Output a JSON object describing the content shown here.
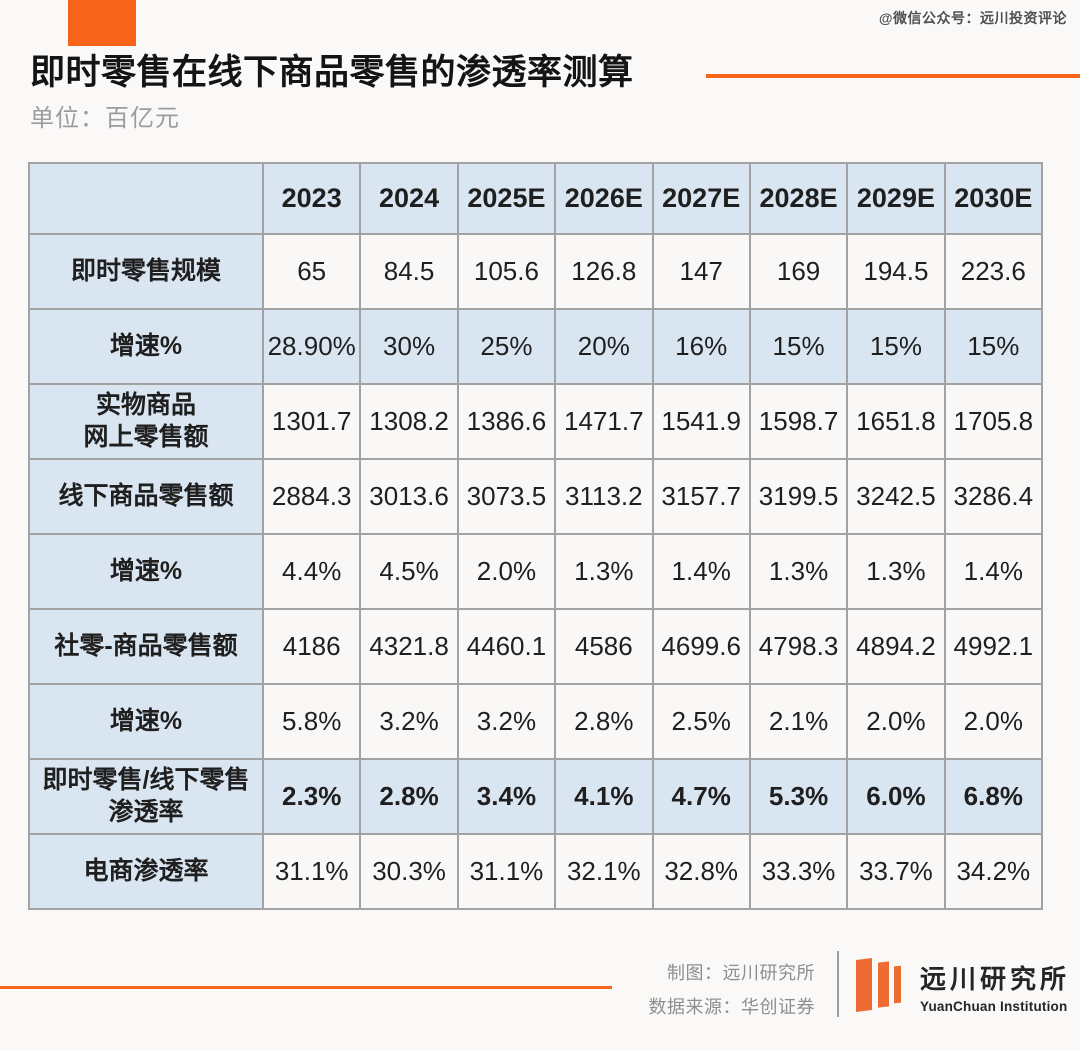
{
  "watermark": "@微信公众号：远川投资评论",
  "header": {
    "title": "即时零售在线下商品零售的渗透率测算",
    "unit": "单位：百亿元"
  },
  "chart_data": {
    "type": "table",
    "title": "即时零售在线下商品零售的渗透率测算",
    "unit": "单位：百亿元",
    "columns": [
      "",
      "2023",
      "2024",
      "2025E",
      "2026E",
      "2027E",
      "2028E",
      "2029E",
      "2030E"
    ],
    "rows": [
      {
        "label": "即时零售规模",
        "highlight": false,
        "bold": false,
        "values": [
          "65",
          "84.5",
          "105.6",
          "126.8",
          "147",
          "169",
          "194.5",
          "223.6"
        ]
      },
      {
        "label": "增速%",
        "highlight": true,
        "bold": false,
        "values": [
          "28.90%",
          "30%",
          "25%",
          "20%",
          "16%",
          "15%",
          "15%",
          "15%"
        ]
      },
      {
        "label": "实物商品\n网上零售额",
        "highlight": false,
        "bold": false,
        "values": [
          "1301.7",
          "1308.2",
          "1386.6",
          "1471.7",
          "1541.9",
          "1598.7",
          "1651.8",
          "1705.8"
        ]
      },
      {
        "label": "线下商品零售额",
        "highlight": false,
        "bold": false,
        "values": [
          "2884.3",
          "3013.6",
          "3073.5",
          "3113.2",
          "3157.7",
          "3199.5",
          "3242.5",
          "3286.4"
        ]
      },
      {
        "label": "增速%",
        "highlight": false,
        "bold": false,
        "values": [
          "4.4%",
          "4.5%",
          "2.0%",
          "1.3%",
          "1.4%",
          "1.3%",
          "1.3%",
          "1.4%"
        ]
      },
      {
        "label": "社零-商品零售额",
        "highlight": false,
        "bold": false,
        "values": [
          "4186",
          "4321.8",
          "4460.1",
          "4586",
          "4699.6",
          "4798.3",
          "4894.2",
          "4992.1"
        ]
      },
      {
        "label": "增速%",
        "highlight": false,
        "bold": false,
        "values": [
          "5.8%",
          "3.2%",
          "3.2%",
          "2.8%",
          "2.5%",
          "2.1%",
          "2.0%",
          "2.0%"
        ]
      },
      {
        "label": "即时零售/线下零售\n渗透率",
        "highlight": true,
        "bold": true,
        "values": [
          "2.3%",
          "2.8%",
          "3.4%",
          "4.1%",
          "4.7%",
          "5.3%",
          "6.0%",
          "6.8%"
        ]
      },
      {
        "label": "电商渗透率",
        "highlight": false,
        "bold": false,
        "values": [
          "31.1%",
          "30.3%",
          "31.1%",
          "32.1%",
          "32.8%",
          "33.3%",
          "33.7%",
          "34.2%"
        ]
      }
    ]
  },
  "footer": {
    "credit_maker": "制图：远川研究所",
    "credit_source": "数据来源：华创证券",
    "logo_cn": "远川研究所",
    "logo_en": "YuanChuan Institution"
  },
  "colors": {
    "accent_orange": "#F8641A",
    "logo_orange": "#ED6C33",
    "header_blue": "#D9E5F1",
    "cell_background": "#F9F8F7",
    "table_border": "#A2A2A2",
    "text_dark": "#1F1F1F",
    "text_gray": "#9C9C9C"
  }
}
